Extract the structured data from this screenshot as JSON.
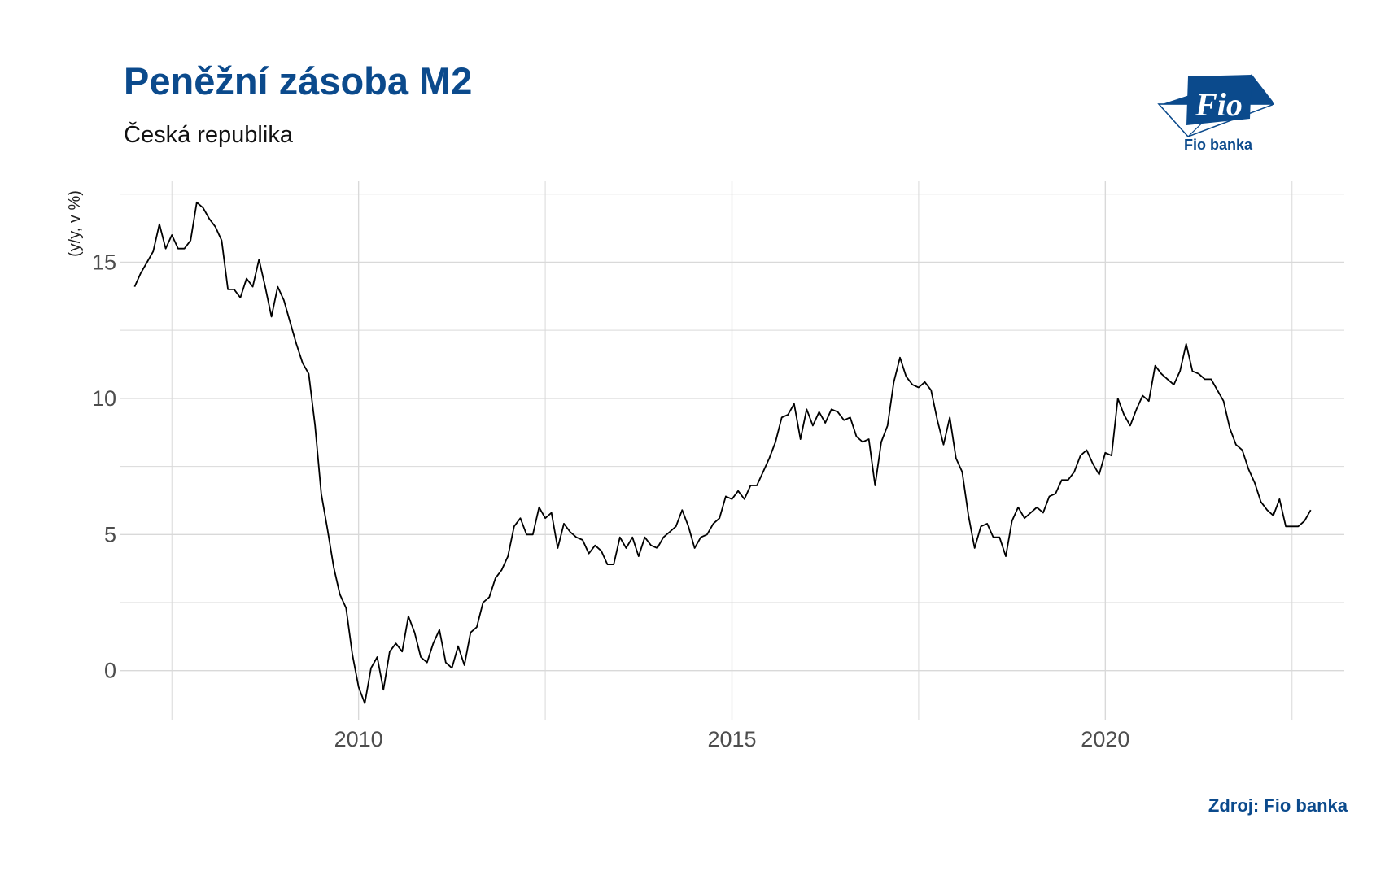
{
  "header": {
    "title": "Peněžní zásoba M2",
    "subtitle": "Česká republika"
  },
  "logo": {
    "mark_text": "Fio",
    "caption": "Fio banka",
    "color": "#0b4a8c"
  },
  "footer": {
    "source": "Zdroj: Fio banka"
  },
  "colors": {
    "accent": "#0b4a8c",
    "line": "#000000",
    "grid": "#d9d9d9"
  },
  "chart_data": {
    "type": "line",
    "title": "Peněžní zásoba M2",
    "subtitle": "Česká republika",
    "xlabel": "",
    "ylabel": "(y/y, v %)",
    "xlim": [
      2006.8,
      2023.2
    ],
    "ylim": [
      -1.8,
      18.0
    ],
    "x_ticks": [
      2010,
      2015,
      2020
    ],
    "x_minor_ticks": [
      2007.5,
      2012.5,
      2017.5,
      2022.5
    ],
    "y_ticks": [
      0,
      5,
      10,
      15
    ],
    "y_minor_ticks": [
      2.5,
      7.5,
      12.5,
      17.5
    ],
    "grid": true,
    "legend": "none",
    "series": [
      {
        "x": [
          2007.0,
          2007.083,
          2007.167,
          2007.25,
          2007.333,
          2007.417,
          2007.5,
          2007.583,
          2007.667,
          2007.75,
          2007.833,
          2007.917,
          2008.0,
          2008.083,
          2008.167,
          2008.25,
          2008.333,
          2008.417,
          2008.5,
          2008.583,
          2008.667,
          2008.75,
          2008.833,
          2008.917,
          2009.0,
          2009.083,
          2009.167,
          2009.25,
          2009.333,
          2009.417,
          2009.5,
          2009.583,
          2009.667,
          2009.75,
          2009.833,
          2009.917,
          2010.0,
          2010.083,
          2010.167,
          2010.25,
          2010.333,
          2010.417,
          2010.5,
          2010.583,
          2010.667,
          2010.75,
          2010.833,
          2010.917,
          2011.0,
          2011.083,
          2011.167,
          2011.25,
          2011.333,
          2011.417,
          2011.5,
          2011.583,
          2011.667,
          2011.75,
          2011.833,
          2011.917,
          2012.0,
          2012.083,
          2012.167,
          2012.25,
          2012.333,
          2012.417,
          2012.5,
          2012.583,
          2012.667,
          2012.75,
          2012.833,
          2012.917,
          2013.0,
          2013.083,
          2013.167,
          2013.25,
          2013.333,
          2013.417,
          2013.5,
          2013.583,
          2013.667,
          2013.75,
          2013.833,
          2013.917,
          2014.0,
          2014.083,
          2014.167,
          2014.25,
          2014.333,
          2014.417,
          2014.5,
          2014.583,
          2014.667,
          2014.75,
          2014.833,
          2014.917,
          2015.0,
          2015.083,
          2015.167,
          2015.25,
          2015.333,
          2015.417,
          2015.5,
          2015.583,
          2015.667,
          2015.75,
          2015.833,
          2015.917,
          2016.0,
          2016.083,
          2016.167,
          2016.25,
          2016.333,
          2016.417,
          2016.5,
          2016.583,
          2016.667,
          2016.75,
          2016.833,
          2016.917,
          2017.0,
          2017.083,
          2017.167,
          2017.25,
          2017.333,
          2017.417,
          2017.5,
          2017.583,
          2017.667,
          2017.75,
          2017.833,
          2017.917,
          2018.0,
          2018.083,
          2018.167,
          2018.25,
          2018.333,
          2018.417,
          2018.5,
          2018.583,
          2018.667,
          2018.75,
          2018.833,
          2018.917,
          2019.0,
          2019.083,
          2019.167,
          2019.25,
          2019.333,
          2019.417,
          2019.5,
          2019.583,
          2019.667,
          2019.75,
          2019.833,
          2019.917,
          2020.0,
          2020.083,
          2020.167,
          2020.25,
          2020.333,
          2020.417,
          2020.5,
          2020.583,
          2020.667,
          2020.75,
          2020.833,
          2020.917,
          2021.0,
          2021.083,
          2021.167,
          2021.25,
          2021.333,
          2021.417,
          2021.5,
          2021.583,
          2021.667,
          2021.75,
          2021.833,
          2021.917,
          2022.0,
          2022.083,
          2022.167,
          2022.25,
          2022.333,
          2022.417,
          2022.5,
          2022.583,
          2022.667,
          2022.75
        ],
        "values": [
          14.1,
          14.6,
          15.0,
          15.4,
          16.4,
          15.5,
          16.0,
          15.5,
          15.5,
          15.8,
          17.2,
          17.0,
          16.6,
          16.3,
          15.8,
          14.0,
          14.0,
          13.7,
          14.4,
          14.1,
          15.1,
          14.1,
          13.0,
          14.1,
          13.6,
          12.8,
          12.0,
          11.3,
          10.9,
          9.0,
          6.5,
          5.2,
          3.8,
          2.8,
          2.3,
          0.6,
          -0.6,
          -1.2,
          0.1,
          0.5,
          -0.7,
          0.7,
          1.0,
          0.7,
          2.0,
          1.4,
          0.5,
          0.3,
          1.0,
          1.5,
          0.3,
          0.1,
          0.9,
          0.2,
          1.4,
          1.6,
          2.5,
          2.7,
          3.4,
          3.7,
          4.2,
          5.3,
          5.6,
          5.0,
          5.0,
          6.0,
          5.6,
          5.8,
          4.5,
          5.4,
          5.1,
          4.9,
          4.8,
          4.3,
          4.6,
          4.4,
          3.9,
          3.9,
          4.9,
          4.5,
          4.9,
          4.2,
          4.9,
          4.6,
          4.5,
          4.9,
          5.1,
          5.3,
          5.9,
          5.3,
          4.5,
          4.9,
          5.0,
          5.4,
          5.6,
          6.4,
          6.3,
          6.6,
          6.3,
          6.8,
          6.8,
          7.3,
          7.8,
          8.4,
          9.3,
          9.4,
          9.8,
          8.5,
          9.6,
          9.0,
          9.5,
          9.1,
          9.6,
          9.5,
          9.2,
          9.3,
          8.6,
          8.4,
          8.5,
          6.8,
          8.4,
          9.0,
          10.6,
          11.5,
          10.8,
          10.5,
          10.4,
          10.6,
          10.3,
          9.2,
          8.3,
          9.3,
          7.8,
          7.3,
          5.7,
          4.5,
          5.3,
          5.4,
          4.9,
          4.9,
          4.2,
          5.5,
          6.0,
          5.6,
          5.8,
          6.0,
          5.8,
          6.4,
          6.5,
          7.0,
          7.0,
          7.3,
          7.9,
          8.1,
          7.6,
          7.2,
          8.0,
          7.9,
          10.0,
          9.4,
          9.0,
          9.6,
          10.1,
          9.9,
          11.2,
          10.9,
          10.7,
          10.5,
          11.0,
          12.0,
          11.0,
          10.9,
          10.7,
          10.7,
          10.3,
          9.9,
          8.9,
          8.3,
          8.1,
          7.4,
          6.9,
          6.2,
          5.9,
          5.7,
          6.3,
          5.3,
          5.3,
          5.3,
          5.5,
          5.9
        ]
      }
    ]
  }
}
